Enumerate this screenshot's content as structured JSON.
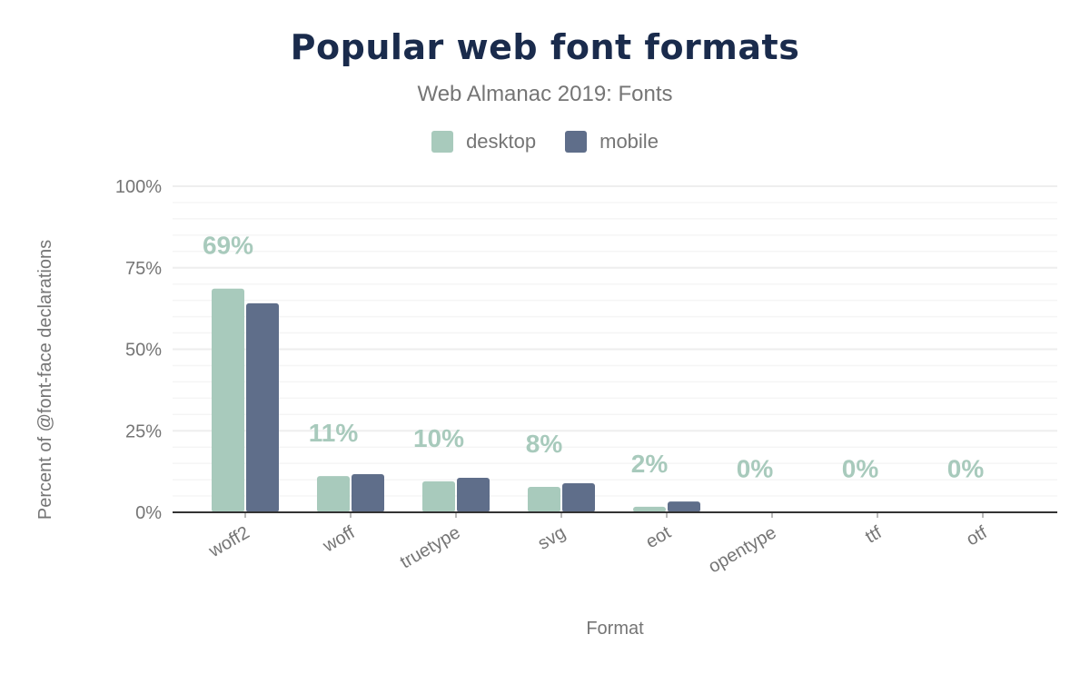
{
  "chart_data": {
    "type": "bar",
    "title": "Popular web font formats",
    "subtitle": "Web Almanac 2019: Fonts",
    "xlabel": "Format",
    "ylabel": "Percent of @font-face declarations",
    "categories": [
      "woff2",
      "woff",
      "truetype",
      "svg",
      "eot",
      "opentype",
      "ttf",
      "otf"
    ],
    "series": [
      {
        "name": "desktop",
        "color": "#a8cabc",
        "values": [
          68.6,
          11.1,
          9.5,
          7.8,
          1.7,
          0.1,
          0.1,
          0.1
        ]
      },
      {
        "name": "mobile",
        "color": "#5f6e8a",
        "values": [
          64.1,
          11.7,
          10.6,
          8.9,
          3.3,
          0.1,
          0.1,
          0.1
        ]
      }
    ],
    "data_labels": [
      "69%",
      "11%",
      "10%",
      "8%",
      "2%",
      "0%",
      "0%",
      "0%"
    ],
    "ylim": [
      0,
      100
    ],
    "yticks": [
      0,
      25,
      50,
      75,
      100
    ],
    "ytick_labels": [
      "0%",
      "25%",
      "50%",
      "75%",
      "100%"
    ],
    "grid": true,
    "legend_position": "top"
  }
}
